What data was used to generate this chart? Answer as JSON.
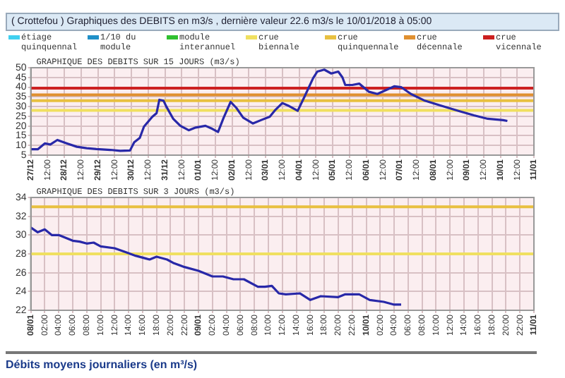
{
  "chart_data": [
    {
      "type": "line",
      "title": "( Crottefou ) Graphiques des DEBITS en m3/s , dernière valeur 22.6 m3/s le 10/01/2018 à 05:00",
      "subtitle": "GRAPHIQUE DES DEBITS SUR 15 JOURS (m3/s)",
      "legend": "top",
      "grid": true,
      "xlim": [
        "2017-12-27T00:00",
        "2018-01-11T00:00"
      ],
      "xticks": [
        {
          "value": "2017-12-27T00:00",
          "label": "27/12"
        },
        {
          "value": "2017-12-27T12:00",
          "label": "12:00"
        },
        {
          "value": "2017-12-28T00:00",
          "label": "28/12"
        },
        {
          "value": "2017-12-28T12:00",
          "label": "12:00"
        },
        {
          "value": "2017-12-29T00:00",
          "label": "29/12"
        },
        {
          "value": "2017-12-29T12:00",
          "label": "12:00"
        },
        {
          "value": "2017-12-30T00:00",
          "label": "30/12"
        },
        {
          "value": "2017-12-30T12:00",
          "label": "12:00"
        },
        {
          "value": "2017-12-31T00:00",
          "label": "31/12"
        },
        {
          "value": "2017-12-31T12:00",
          "label": "12:00"
        },
        {
          "value": "2018-01-01T00:00",
          "label": "01/01"
        },
        {
          "value": "2018-01-01T12:00",
          "label": "12:00"
        },
        {
          "value": "2018-01-02T00:00",
          "label": "02/01"
        },
        {
          "value": "2018-01-02T12:00",
          "label": "12:00"
        },
        {
          "value": "2018-01-03T00:00",
          "label": "03/01"
        },
        {
          "value": "2018-01-03T12:00",
          "label": "12:00"
        },
        {
          "value": "2018-01-04T00:00",
          "label": "04/01"
        },
        {
          "value": "2018-01-04T12:00",
          "label": "12:00"
        },
        {
          "value": "2018-01-05T00:00",
          "label": "05/01"
        },
        {
          "value": "2018-01-05T12:00",
          "label": "12:00"
        },
        {
          "value": "2018-01-06T00:00",
          "label": "06/01"
        },
        {
          "value": "2018-01-06T12:00",
          "label": "12:00"
        },
        {
          "value": "2018-01-07T00:00",
          "label": "07/01"
        },
        {
          "value": "2018-01-07T12:00",
          "label": "12:00"
        },
        {
          "value": "2018-01-08T00:00",
          "label": "08/01"
        },
        {
          "value": "2018-01-08T12:00",
          "label": "12:00"
        },
        {
          "value": "2018-01-09T00:00",
          "label": "09/01"
        },
        {
          "value": "2018-01-09T12:00",
          "label": "12:00"
        },
        {
          "value": "2018-01-10T00:00",
          "label": "10/01"
        },
        {
          "value": "2018-01-10T12:00",
          "label": "12:00"
        },
        {
          "value": "2018-01-11T00:00",
          "label": "11/01"
        }
      ],
      "ylim": [
        5,
        50
      ],
      "yticks": [
        5,
        10,
        15,
        20,
        25,
        30,
        35,
        40,
        45,
        50
      ],
      "series": [
        {
          "name": "étiage quinquennal",
          "color": "#40d0f0"
        },
        {
          "name": "1/10 du module",
          "color": "#2090c8"
        },
        {
          "name": "module interannuel",
          "color": "#30c030"
        },
        {
          "color": "#2828a8",
          "x": [
            "2017-12-27T00:00",
            "2017-12-27T05:00",
            "2017-12-27T10:00",
            "2017-12-27T14:00",
            "2017-12-27T19:00",
            "2017-12-28T02:00",
            "2017-12-28T09:00",
            "2017-12-28T16:00",
            "2017-12-28T23:00",
            "2017-12-29T09:00",
            "2017-12-29T16:00",
            "2017-12-29T23:00",
            "2017-12-30T02:00",
            "2017-12-30T06:00",
            "2017-12-30T09:00",
            "2017-12-30T15:00",
            "2017-12-30T18:00",
            "2017-12-30T20:00",
            "2017-12-30T23:00",
            "2017-12-31T01:00",
            "2017-12-31T06:00",
            "2017-12-31T11:00",
            "2017-12-31T17:00",
            "2017-12-31T22:00",
            "2018-01-01T05:00",
            "2018-01-01T10:00",
            "2018-01-01T14:00",
            "2018-01-01T18:00",
            "2018-01-01T23:00",
            "2018-01-02T03:00",
            "2018-01-02T08:00",
            "2018-01-02T15:00",
            "2018-01-02T21:00",
            "2018-01-03T03:00",
            "2018-01-03T07:00",
            "2018-01-03T12:00",
            "2018-01-03T17:00",
            "2018-01-03T23:00",
            "2018-01-04T04:00",
            "2018-01-04T10:00",
            "2018-01-04T13:00",
            "2018-01-04T18:00",
            "2018-01-04T23:00",
            "2018-01-05T04:00",
            "2018-01-05T07:00",
            "2018-01-05T09:00",
            "2018-01-05T14:00",
            "2018-01-05T19:00",
            "2018-01-06T02:00",
            "2018-01-06T08:00",
            "2018-01-06T13:00",
            "2018-01-06T20:00",
            "2018-01-07T01:00",
            "2018-01-07T08:00",
            "2018-01-07T18:00",
            "2018-01-08T05:00",
            "2018-01-08T18:00",
            "2018-01-09T05:00",
            "2018-01-09T15:00",
            "2018-01-10T02:00",
            "2018-01-10T05:00"
          ],
          "values": [
            8,
            8,
            11,
            10.5,
            12.8,
            11,
            9.3,
            8.6,
            8.1,
            7.7,
            7.2,
            7.4,
            11.6,
            13.9,
            19.7,
            24.8,
            26.6,
            33.5,
            33,
            30,
            23.6,
            20.1,
            17.8,
            19.2,
            20.1,
            18.5,
            16.9,
            24.3,
            32.4,
            29.4,
            24.3,
            21.3,
            23.1,
            24.8,
            28.3,
            31.8,
            30.2,
            27.8,
            35.3,
            44.6,
            48,
            49,
            47,
            48,
            45,
            41.1,
            41.1,
            41.8,
            37.6,
            36.5,
            38.1,
            40.4,
            40,
            36.5,
            33,
            30.6,
            27.8,
            25.5,
            23.7,
            23,
            22.6
          ]
        }
      ],
      "ref_lines": [
        {
          "axis": "y",
          "value": 28,
          "label": "crue biennale",
          "color": "#f0e060"
        },
        {
          "axis": "y",
          "value": 33,
          "label": "crue quinquennale",
          "color": "#e8c040"
        },
        {
          "axis": "y",
          "value": 36,
          "label": "crue décennale",
          "color": "#e09030"
        },
        {
          "axis": "y",
          "value": 39.5,
          "label": "crue vicennale",
          "color": "#cc2020"
        }
      ]
    },
    {
      "type": "line",
      "title": "GRAPHIQUE DES DEBITS SUR 3 JOURS (m3/s)",
      "grid": true,
      "xlim": [
        "2018-01-08T00:00",
        "2018-01-11T00:00"
      ],
      "xticks": [
        {
          "value": "2018-01-08T00:00",
          "label": "08/01"
        },
        {
          "value": "2018-01-08T02:00",
          "label": "02:00"
        },
        {
          "value": "2018-01-08T04:00",
          "label": "04:00"
        },
        {
          "value": "2018-01-08T06:00",
          "label": "06:00"
        },
        {
          "value": "2018-01-08T08:00",
          "label": "08:00"
        },
        {
          "value": "2018-01-08T10:00",
          "label": "10:00"
        },
        {
          "value": "2018-01-08T12:00",
          "label": "12:00"
        },
        {
          "value": "2018-01-08T14:00",
          "label": "14:00"
        },
        {
          "value": "2018-01-08T16:00",
          "label": "16:00"
        },
        {
          "value": "2018-01-08T18:00",
          "label": "18:00"
        },
        {
          "value": "2018-01-08T20:00",
          "label": "20:00"
        },
        {
          "value": "2018-01-08T22:00",
          "label": "22:00"
        },
        {
          "value": "2018-01-09T00:00",
          "label": "09/01"
        },
        {
          "value": "2018-01-09T02:00",
          "label": "02:00"
        },
        {
          "value": "2018-01-09T04:00",
          "label": "04:00"
        },
        {
          "value": "2018-01-09T06:00",
          "label": "06:00"
        },
        {
          "value": "2018-01-09T08:00",
          "label": "08:00"
        },
        {
          "value": "2018-01-09T10:00",
          "label": "10:00"
        },
        {
          "value": "2018-01-09T12:00",
          "label": "12:00"
        },
        {
          "value": "2018-01-09T14:00",
          "label": "14:00"
        },
        {
          "value": "2018-01-09T16:00",
          "label": "16:00"
        },
        {
          "value": "2018-01-09T18:00",
          "label": "18:00"
        },
        {
          "value": "2018-01-09T20:00",
          "label": "20:00"
        },
        {
          "value": "2018-01-09T22:00",
          "label": "22:00"
        },
        {
          "value": "2018-01-10T00:00",
          "label": "10/01"
        },
        {
          "value": "2018-01-10T02:00",
          "label": "02:00"
        },
        {
          "value": "2018-01-10T04:00",
          "label": "04:00"
        },
        {
          "value": "2018-01-10T06:00",
          "label": "06:00"
        },
        {
          "value": "2018-01-10T08:00",
          "label": "08:00"
        },
        {
          "value": "2018-01-10T10:00",
          "label": "10:00"
        },
        {
          "value": "2018-01-10T12:00",
          "label": "12:00"
        },
        {
          "value": "2018-01-10T14:00",
          "label": "14:00"
        },
        {
          "value": "2018-01-10T16:00",
          "label": "16:00"
        },
        {
          "value": "2018-01-10T18:00",
          "label": "18:00"
        },
        {
          "value": "2018-01-10T20:00",
          "label": "20:00"
        },
        {
          "value": "2018-01-10T22:00",
          "label": "22:00"
        },
        {
          "value": "2018-01-11T00:00",
          "label": "11/01"
        }
      ],
      "ylim": [
        22,
        34
      ],
      "yticks": [
        22,
        24,
        26,
        28,
        30,
        32,
        34
      ],
      "series": [
        {
          "color": "#2828a8",
          "x": [
            "2018-01-08T00:00",
            "2018-01-08T01:00",
            "2018-01-08T02:00",
            "2018-01-08T03:00",
            "2018-01-08T04:00",
            "2018-01-08T05:00",
            "2018-01-08T06:00",
            "2018-01-08T07:00",
            "2018-01-08T08:00",
            "2018-01-08T09:00",
            "2018-01-08T10:00",
            "2018-01-08T12:00",
            "2018-01-08T13:30",
            "2018-01-08T15:00",
            "2018-01-08T16:30",
            "2018-01-08T17:00",
            "2018-01-08T18:00",
            "2018-01-08T19:30",
            "2018-01-08T20:30",
            "2018-01-08T22:00",
            "2018-01-09T00:00",
            "2018-01-09T02:00",
            "2018-01-09T03:30",
            "2018-01-09T05:00",
            "2018-01-09T06:30",
            "2018-01-09T08:30",
            "2018-01-09T09:30",
            "2018-01-09T10:30",
            "2018-01-09T11:30",
            "2018-01-09T12:30",
            "2018-01-09T14:30",
            "2018-01-09T16:00",
            "2018-01-09T17:30",
            "2018-01-09T20:00",
            "2018-01-09T21:00",
            "2018-01-09T23:00",
            "2018-01-10T00:30",
            "2018-01-10T02:30",
            "2018-01-10T04:00",
            "2018-01-10T05:00"
          ],
          "values": [
            30.8,
            30.3,
            30.6,
            30,
            30,
            29.7,
            29.4,
            29.3,
            29.1,
            29.2,
            28.8,
            28.6,
            28.2,
            27.8,
            27.5,
            27.4,
            27.7,
            27.4,
            27,
            26.6,
            26.2,
            25.6,
            25.6,
            25.3,
            25.3,
            24.5,
            24.5,
            24.6,
            23.8,
            23.7,
            23.8,
            23.1,
            23.5,
            23.4,
            23.7,
            23.7,
            23.1,
            22.9,
            22.6,
            22.6
          ]
        }
      ],
      "ref_lines": [
        {
          "axis": "y",
          "value": 28,
          "color": "#f0e060"
        },
        {
          "axis": "y",
          "value": 33,
          "color": "#e8c040"
        }
      ],
      "annotations": [
        "Débits moyens journaliers (en m³/s)"
      ]
    }
  ]
}
